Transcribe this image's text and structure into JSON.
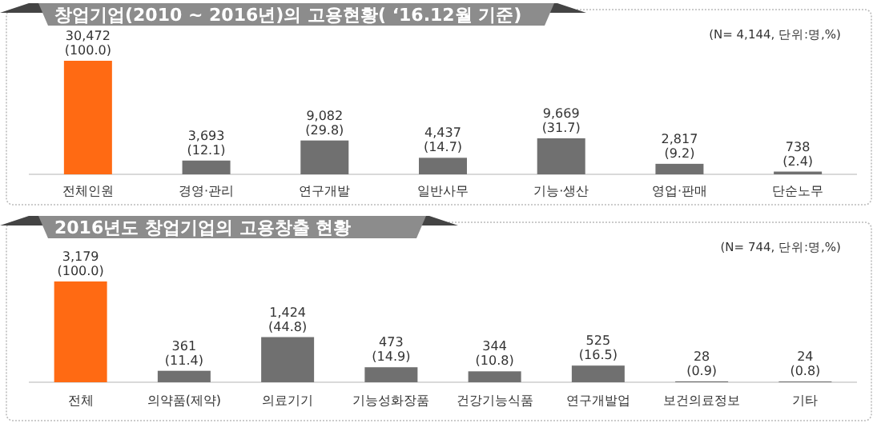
{
  "chart_data": [
    {
      "type": "bar",
      "title": "창업기업(2010 ~ 2016년)의 고용현황( ‘16.12월 기준)",
      "annotations": [
        "(N= 4,144,  단위:명,%)"
      ],
      "categories": [
        "전체인원",
        "경영·관리",
        "연구개발",
        "일반사무",
        "기능·생산",
        "영업·판매",
        "단순노무"
      ],
      "values": [
        30472,
        3693,
        9082,
        4437,
        9669,
        2817,
        738
      ],
      "value_labels": [
        "30,472 (100.0)",
        "3,693 (12.1)",
        "9,082 (29.8)",
        "4,437 (14.7)",
        "9,669 (31.7)",
        "2,817 (9.2)",
        "738 (2.4)"
      ],
      "colors": [
        "#ff6a13",
        "#707070",
        "#707070",
        "#707070",
        "#707070",
        "#707070",
        "#707070"
      ]
    },
    {
      "type": "bar",
      "title": "2016년도 창업기업의 고용창출 현황",
      "annotations": [
        "(N= 744,  단위:명,%)"
      ],
      "categories": [
        "전체",
        "의약품(제약)",
        "의료기기",
        "기능성화장품",
        "건강기능식품",
        "연구개발업",
        "보건의료정보",
        "기타"
      ],
      "values": [
        3179,
        361,
        1424,
        473,
        344,
        525,
        28,
        24
      ],
      "value_labels": [
        "3,179 (100.0)",
        "361 (11.4)",
        "1,424 (44.8)",
        "473 (14.9)",
        "344 (10.8)",
        "525 (16.5)",
        "28 (0.9)",
        "24 (0.8)"
      ],
      "colors": [
        "#ff6a13",
        "#707070",
        "#707070",
        "#707070",
        "#707070",
        "#707070",
        "#707070",
        "#707070"
      ]
    }
  ]
}
